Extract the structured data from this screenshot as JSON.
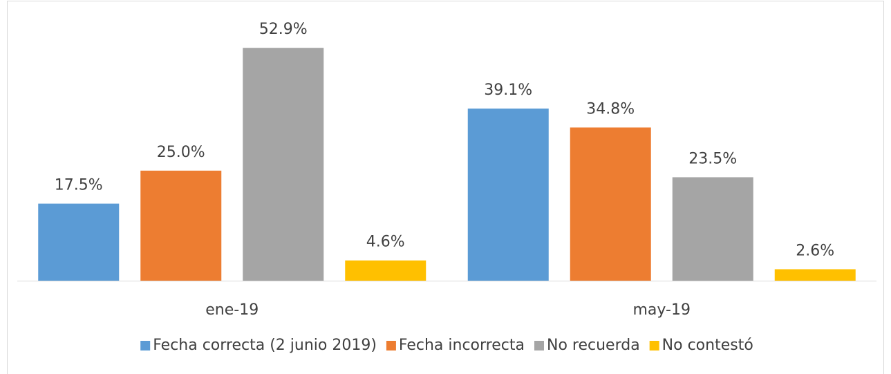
{
  "chart_data": {
    "type": "bar",
    "categories": [
      "ene-19",
      "may-19"
    ],
    "series": [
      {
        "name": "Fecha correcta (2 junio 2019)",
        "color": "#5b9bd5",
        "values": [
          17.5,
          39.1
        ],
        "value_labels": [
          "17.5%",
          "39.1%"
        ]
      },
      {
        "name": "Fecha incorrecta",
        "color": "#ed7d31",
        "values": [
          25.0,
          34.8
        ],
        "value_labels": [
          "25.0%",
          "34.8%"
        ]
      },
      {
        "name": "No recuerda",
        "color": "#a5a5a5",
        "values": [
          52.9,
          23.5
        ],
        "value_labels": [
          "52.9%",
          "23.5%"
        ]
      },
      {
        "name": "No contestó",
        "color": "#ffc000",
        "values": [
          4.6,
          2.6
        ],
        "value_labels": [
          "4.6%",
          "2.6%"
        ]
      }
    ],
    "ylim": [
      0,
      60
    ],
    "legend": "bottom"
  }
}
